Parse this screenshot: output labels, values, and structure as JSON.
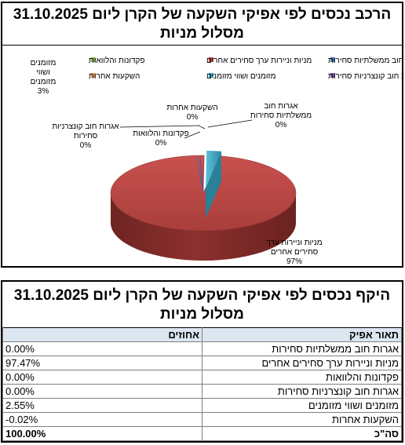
{
  "chart_panel": {
    "title_line1": "הרכב נכסים לפי אפיקי השקעה של הקרן ליום 31.10.2025",
    "title_line2": "מסלול מניות"
  },
  "chart_data": {
    "type": "pie",
    "title": "",
    "legend_position": "top",
    "slices": [
      {
        "label": "אגרות חוב ממשלתיות סחירות",
        "value": 0.0,
        "data_label": "0%",
        "color": "#4a7ebb"
      },
      {
        "label": "מניות וניירות ערך סחירים אחרים",
        "value": 97.47,
        "data_label": "97%",
        "color": "#be4b48"
      },
      {
        "label": "פקדונות והלוואות",
        "value": 0.0,
        "data_label": "0%",
        "color": "#98b954"
      },
      {
        "label": "אגרות חוב קונצרניות סחירות",
        "value": 0.0,
        "data_label": "0%",
        "color": "#7d60a0"
      },
      {
        "label": "מזומנים ושווי מזומנים",
        "value": 2.55,
        "data_label": "3%",
        "color": "#46aac5"
      },
      {
        "label": "השקעות אחרות",
        "value": -0.02,
        "data_label": "0%",
        "color": "#f59d56"
      }
    ],
    "callouts": {
      "gov": [
        "אגרות חוב",
        "ממשלתיות סחירות",
        "0%"
      ],
      "other": [
        "השקעות אחרות",
        "0%"
      ],
      "deposits": [
        "פקדונות והלוואות",
        "0%"
      ],
      "corp": [
        "אגרות חוב קונצרניות",
        "סחירות",
        "0%"
      ],
      "cash": [
        "מזומנים",
        "ושווי",
        "מזומנים",
        "3%"
      ],
      "equity": [
        "מניות וניירות ערך",
        "סחירים אחרים",
        "97%"
      ]
    }
  },
  "table_panel": {
    "title_line1": "היקף נכסים לפי אפיקי השקעה של הקרן ליום 31.10.2025",
    "title_line2": "מסלול מניות",
    "col_description": "תאור אפיק",
    "col_percent": "אחוזים",
    "rows": [
      {
        "description": "אגרות חוב ממשלתיות סחירות",
        "percent": "0.00%"
      },
      {
        "description": "מניות וניירות ערך סחירים אחרים",
        "percent": "97.47%"
      },
      {
        "description": "פקדונות והלוואות",
        "percent": "0.00%"
      },
      {
        "description": "אגרות חוב קונצרניות סחירות",
        "percent": "0.00%"
      },
      {
        "description": "מזומנים ושווי מזומנים",
        "percent": "2.55%"
      },
      {
        "description": "השקעות אחרות",
        "percent": "-0.02%"
      }
    ],
    "total_label": "סה\"כ",
    "total_percent": "100.00%"
  }
}
